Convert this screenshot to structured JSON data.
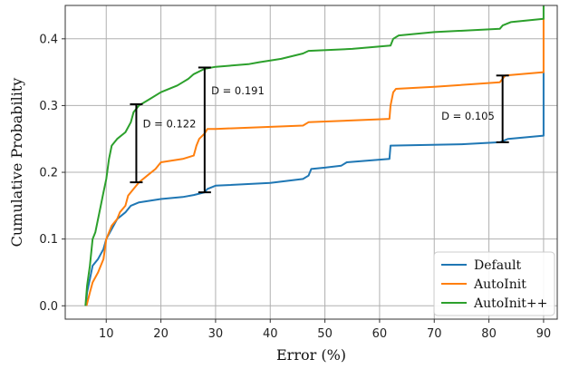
{
  "chart_data": {
    "type": "line",
    "title": "",
    "xlabel": "Error (%)",
    "ylabel": "Cumulative Probability",
    "xlim": [
      2.5,
      92.5
    ],
    "ylim": [
      -0.02,
      0.45
    ],
    "xticks": [
      10,
      20,
      30,
      40,
      50,
      60,
      70,
      80,
      90
    ],
    "yticks": [
      0.0,
      0.1,
      0.2,
      0.3,
      0.4
    ],
    "ytick_labels": [
      "0.0",
      "0.1",
      "0.2",
      "0.3",
      "0.4"
    ],
    "grid": true,
    "legend_position": "bottom-right",
    "series": [
      {
        "name": "Default",
        "color": "#1f77b4",
        "points": [
          [
            6.3,
            0.0
          ],
          [
            6.5,
            0.02
          ],
          [
            7.0,
            0.04
          ],
          [
            7.5,
            0.06
          ],
          [
            8.5,
            0.07
          ],
          [
            9.5,
            0.085
          ],
          [
            10.0,
            0.1
          ],
          [
            11.0,
            0.115
          ],
          [
            12.0,
            0.13
          ],
          [
            13.5,
            0.14
          ],
          [
            14.5,
            0.15
          ],
          [
            16.0,
            0.155
          ],
          [
            20.0,
            0.16
          ],
          [
            24.0,
            0.163
          ],
          [
            26.0,
            0.166
          ],
          [
            28.0,
            0.17
          ],
          [
            28.5,
            0.175
          ],
          [
            30.0,
            0.18
          ],
          [
            40.0,
            0.184
          ],
          [
            46.0,
            0.19
          ],
          [
            47.0,
            0.195
          ],
          [
            47.5,
            0.205
          ],
          [
            50.0,
            0.207
          ],
          [
            53.0,
            0.21
          ],
          [
            54.0,
            0.215
          ],
          [
            61.8,
            0.22
          ],
          [
            62.0,
            0.24
          ],
          [
            75.0,
            0.242
          ],
          [
            82.0,
            0.245
          ],
          [
            83.5,
            0.25
          ],
          [
            90.0,
            0.255
          ],
          [
            90.0,
            0.35
          ]
        ]
      },
      {
        "name": "AutoInit",
        "color": "#ff7f0e",
        "points": [
          [
            6.4,
            0.0
          ],
          [
            7.0,
            0.02
          ],
          [
            7.5,
            0.035
          ],
          [
            8.5,
            0.05
          ],
          [
            9.5,
            0.07
          ],
          [
            10.0,
            0.1
          ],
          [
            11.0,
            0.12
          ],
          [
            12.0,
            0.13
          ],
          [
            12.5,
            0.14
          ],
          [
            13.5,
            0.15
          ],
          [
            14.0,
            0.165
          ],
          [
            15.0,
            0.175
          ],
          [
            16.0,
            0.185
          ],
          [
            17.5,
            0.195
          ],
          [
            19.0,
            0.205
          ],
          [
            20.0,
            0.215
          ],
          [
            24.0,
            0.22
          ],
          [
            26.0,
            0.225
          ],
          [
            26.5,
            0.24
          ],
          [
            27.0,
            0.25
          ],
          [
            28.0,
            0.258
          ],
          [
            28.5,
            0.265
          ],
          [
            30.0,
            0.265
          ],
          [
            46.0,
            0.27
          ],
          [
            47.0,
            0.275
          ],
          [
            61.8,
            0.28
          ],
          [
            62.0,
            0.3
          ],
          [
            62.5,
            0.32
          ],
          [
            63.0,
            0.325
          ],
          [
            70.0,
            0.328
          ],
          [
            82.0,
            0.335
          ],
          [
            83.0,
            0.345
          ],
          [
            90.0,
            0.35
          ],
          [
            90.0,
            0.43
          ]
        ]
      },
      {
        "name": "AutoInit++",
        "color": "#2ca02c",
        "points": [
          [
            6.2,
            0.0
          ],
          [
            6.5,
            0.03
          ],
          [
            7.0,
            0.06
          ],
          [
            7.5,
            0.1
          ],
          [
            8.0,
            0.11
          ],
          [
            9.0,
            0.15
          ],
          [
            9.5,
            0.17
          ],
          [
            10.0,
            0.19
          ],
          [
            10.5,
            0.22
          ],
          [
            11.0,
            0.24
          ],
          [
            12.0,
            0.25
          ],
          [
            13.5,
            0.26
          ],
          [
            14.5,
            0.275
          ],
          [
            15.0,
            0.29
          ],
          [
            16.0,
            0.3
          ],
          [
            18.0,
            0.31
          ],
          [
            20.0,
            0.32
          ],
          [
            23.0,
            0.33
          ],
          [
            24.0,
            0.335
          ],
          [
            25.0,
            0.34
          ],
          [
            26.0,
            0.347
          ],
          [
            28.0,
            0.355
          ],
          [
            30.0,
            0.358
          ],
          [
            36.0,
            0.362
          ],
          [
            38.0,
            0.365
          ],
          [
            42.0,
            0.37
          ],
          [
            46.0,
            0.378
          ],
          [
            47.0,
            0.382
          ],
          [
            55.0,
            0.385
          ],
          [
            62.0,
            0.39
          ],
          [
            62.5,
            0.4
          ],
          [
            63.5,
            0.405
          ],
          [
            70.0,
            0.41
          ],
          [
            82.0,
            0.415
          ],
          [
            82.5,
            0.42
          ],
          [
            84.0,
            0.425
          ],
          [
            90.0,
            0.43
          ],
          [
            90.0,
            0.45
          ]
        ]
      }
    ],
    "annotations": [
      {
        "label": "D = 0.122",
        "x": 15.5,
        "y_low": 0.185,
        "y_high": 0.302,
        "text_x": 16.7,
        "text_y": 0.273
      },
      {
        "label": "D = 0.191",
        "x": 28.0,
        "y_low": 0.17,
        "y_high": 0.357,
        "text_x": 29.2,
        "text_y": 0.322
      },
      {
        "label": "D = 0.105",
        "x": 82.5,
        "y_low": 0.245,
        "y_high": 0.345,
        "text_x": 71.3,
        "text_y": 0.284
      }
    ]
  }
}
